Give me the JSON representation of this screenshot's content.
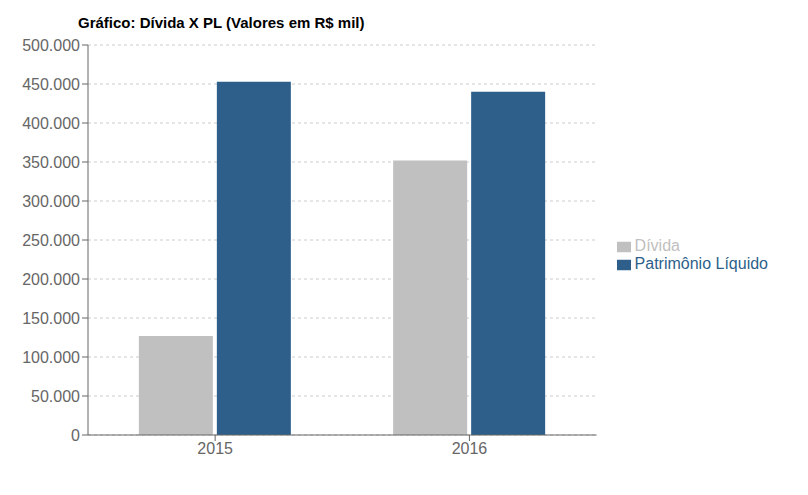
{
  "chart_data": {
    "type": "bar",
    "title": "Gráfico: Dívida X PL (Valores em R$ mil)",
    "categories": [
      "2015",
      "2016"
    ],
    "series": [
      {
        "name": "Dívida",
        "color": "#C0C0C0",
        "values": [
          127000,
          352000
        ]
      },
      {
        "name": "Patrimônio Líquido",
        "color": "#2E5F8A",
        "values": [
          453000,
          440000
        ]
      }
    ],
    "ylim": [
      0,
      500000
    ],
    "yticks": [
      0,
      {
        "value": 50000,
        "label": "50.000"
      },
      {
        "value": 100000,
        "label": "100.000"
      },
      {
        "value": 150000,
        "label": "150.000"
      },
      {
        "value": 200000,
        "label": "200.000"
      },
      {
        "value": 250000,
        "label": "250.000"
      },
      {
        "value": 300000,
        "label": "300.000"
      },
      {
        "value": 350000,
        "label": "350.000"
      },
      {
        "value": 400000,
        "label": "400.000"
      },
      {
        "value": 450000,
        "label": "450.000"
      },
      {
        "value": 500000,
        "label": "500.000"
      }
    ],
    "grid": true,
    "legend": "right"
  }
}
